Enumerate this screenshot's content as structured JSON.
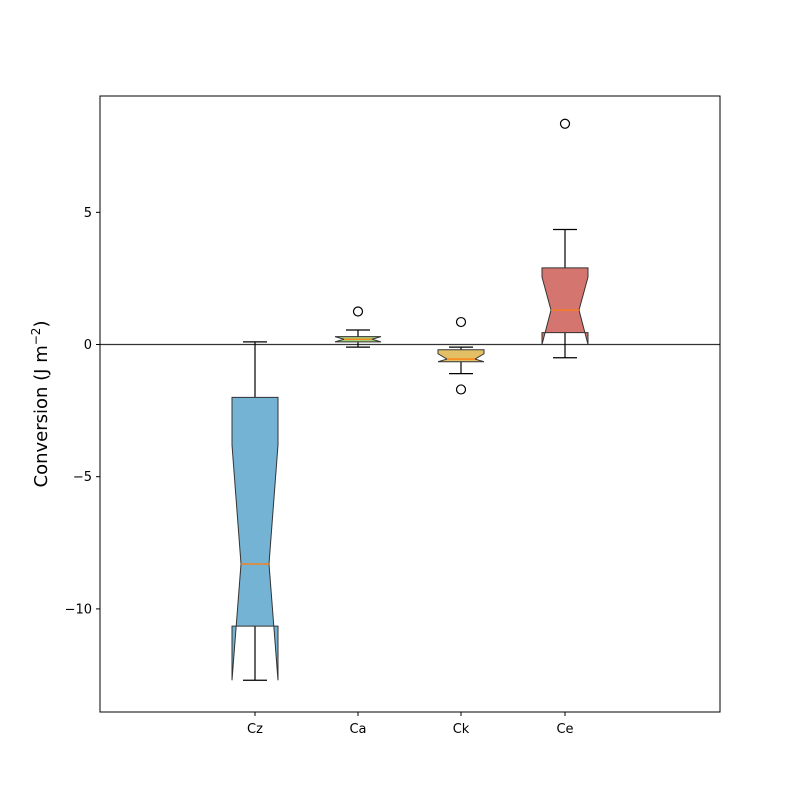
{
  "chart_data": {
    "type": "box",
    "notched": true,
    "title": "",
    "xlabel": "",
    "ylabel": "Conversion (J m",
    "ylabel_unit_exponent": "−2",
    "ylabel_close": ")",
    "ylim": [
      -13.9,
      9.4
    ],
    "yticks": [
      5,
      0,
      -5,
      -10
    ],
    "ytick_labels": [
      "5",
      "0",
      "−5",
      "−10"
    ],
    "zero_line": 0,
    "grid": false,
    "categories": [
      "Cz",
      "Ca",
      "Ck",
      "Ce"
    ],
    "boxes": [
      {
        "label": "Cz",
        "whisker_low": -12.7,
        "q1": -10.65,
        "median": -8.3,
        "q3": -2.0,
        "whisker_high": 0.1,
        "notch_low": -12.7,
        "notch_high": -3.8,
        "fliers": [],
        "color": "#74b3d4"
      },
      {
        "label": "Ca",
        "whisker_low": -0.1,
        "q1": 0.1,
        "median": 0.2,
        "q3": 0.3,
        "whisker_high": 0.55,
        "notch_low": 0.1,
        "notch_high": 0.3,
        "fliers": [
          1.25
        ],
        "color": "#a9d17a"
      },
      {
        "label": "Ck",
        "whisker_low": -1.1,
        "q1": -0.65,
        "median": -0.55,
        "q3": -0.2,
        "whisker_high": -0.1,
        "notch_low": -0.65,
        "notch_high": -0.35,
        "fliers": [
          0.85,
          -1.7
        ],
        "color": "#e3c066"
      },
      {
        "label": "Ce",
        "whisker_low": -0.5,
        "q1": 0.45,
        "median": 1.3,
        "q3": 2.9,
        "whisker_high": 4.35,
        "notch_low": 0.0,
        "notch_high": 2.55,
        "fliers": [
          8.35
        ],
        "color": "#d4766f"
      }
    ],
    "median_color": "#ff7f0e"
  }
}
